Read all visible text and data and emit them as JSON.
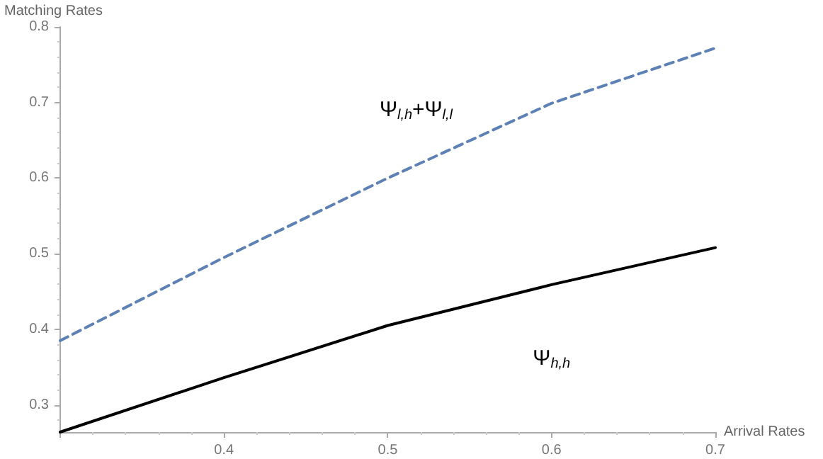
{
  "chart_data": {
    "type": "line",
    "xlabel": "Arrival Rates",
    "ylabel": "Matching Rates",
    "x": [
      0.3,
      0.4,
      0.5,
      0.6,
      0.7
    ],
    "series": [
      {
        "name": "Ψ$_{l,h}$+Ψ$_{l,l}$",
        "color": "#5e81b5",
        "line_style": "dashed",
        "values": [
          0.385,
          0.495,
          0.6,
          0.699,
          0.772
        ]
      },
      {
        "name": "Ψ$_{h,h}$",
        "color": "#000000",
        "line_style": "solid",
        "values": [
          0.264,
          0.336,
          0.405,
          0.459,
          0.508
        ]
      }
    ],
    "xlim": [
      0.3,
      0.7
    ],
    "xticks": [
      {
        "value": 0.3,
        "label": null
      },
      0.4,
      0.5,
      0.6,
      0.7
    ],
    "ylim": [
      0.264,
      0.8
    ],
    "yticks": [
      0.3,
      0.4,
      0.5,
      0.6,
      0.7,
      0.8
    ],
    "marker": "none",
    "grid": false
  }
}
